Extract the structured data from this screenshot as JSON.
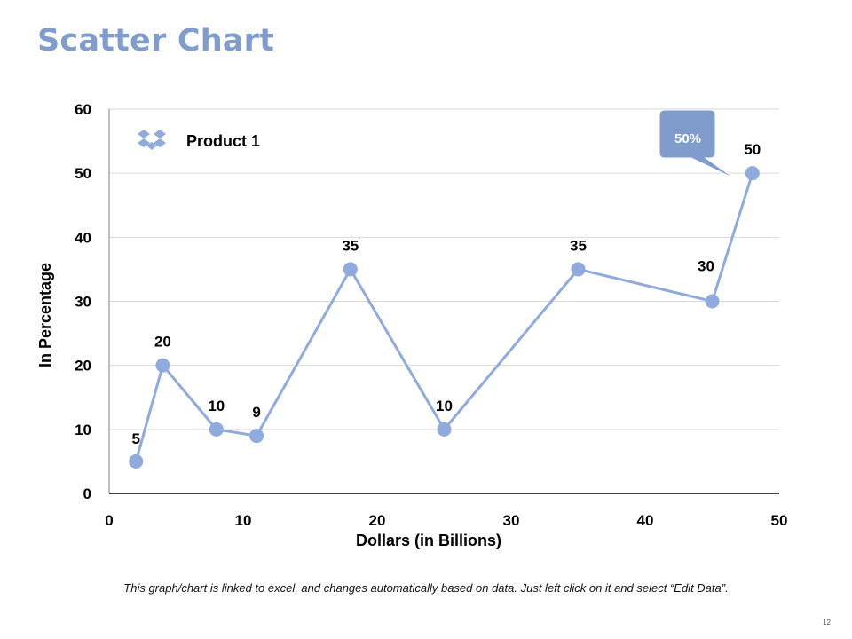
{
  "slide": {
    "title": "Scatter Chart",
    "footnote": "This graph/chart is linked to excel, and changes automatically based on data. Just left click on it and select “Edit Data”.",
    "page_number": "12"
  },
  "callout": {
    "text": "50%",
    "color": "#7f9ccd"
  },
  "legend": {
    "icon": "dropbox-icon",
    "label": "Product 1"
  },
  "colors": {
    "series": "#8faadc",
    "marker": "#8faadc",
    "grid": "#d9d9d9",
    "axis": "#000000"
  },
  "chart_data": {
    "type": "scatter",
    "xlabel": "Dollars (in Billions)",
    "ylabel": "In Percentage",
    "xlim": [
      0,
      50
    ],
    "ylim": [
      0,
      60
    ],
    "x_ticks": [
      0,
      10,
      20,
      30,
      40,
      50
    ],
    "y_ticks": [
      0,
      10,
      20,
      30,
      40,
      50,
      60
    ],
    "grid": true,
    "lines_connecting_points": true,
    "series": [
      {
        "name": "Product 1",
        "x": [
          2,
          4,
          8,
          11,
          18,
          25,
          35,
          45,
          48
        ],
        "y": [
          5,
          20,
          10,
          9,
          35,
          10,
          35,
          30,
          50
        ],
        "labels": [
          "5",
          "20",
          "10",
          "9",
          "35",
          "10",
          "35",
          "30",
          "50"
        ]
      }
    ]
  }
}
